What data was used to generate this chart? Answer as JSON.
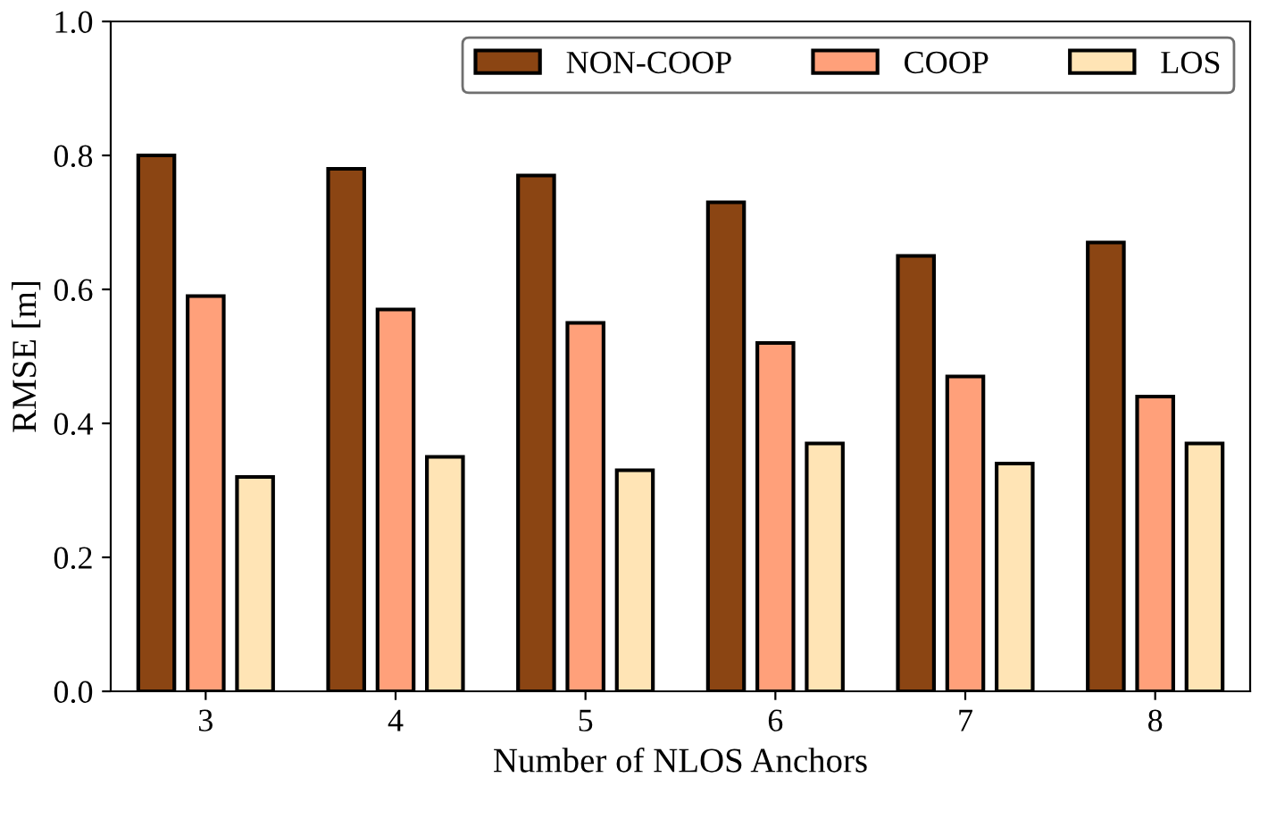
{
  "chart_data": {
    "type": "bar",
    "xlabel": "Number of NLOS Anchors",
    "ylabel": "RMSE [m]",
    "categories": [
      "3",
      "4",
      "5",
      "6",
      "7",
      "8"
    ],
    "series": [
      {
        "name": "NON-COOP",
        "color": "#8b4513",
        "values": [
          0.8,
          0.78,
          0.77,
          0.73,
          0.65,
          0.67
        ]
      },
      {
        "name": "COOP",
        "color": "#ffa07a",
        "values": [
          0.59,
          0.57,
          0.55,
          0.52,
          0.47,
          0.44
        ]
      },
      {
        "name": "LOS",
        "color": "#ffe4b5",
        "values": [
          0.32,
          0.35,
          0.33,
          0.37,
          0.34,
          0.37
        ]
      }
    ],
    "ylim": [
      0,
      1.0
    ],
    "yticks": [
      {
        "value": 0,
        "label": "0.0"
      },
      {
        "value": 0.2,
        "label": "0.2"
      },
      {
        "value": 0.4,
        "label": "0.4"
      },
      {
        "value": 0.6,
        "label": "0.6"
      },
      {
        "value": 0.8,
        "label": "0.8"
      },
      {
        "value": 1,
        "label": "1.0"
      }
    ],
    "grid": false,
    "legend": "top right"
  }
}
